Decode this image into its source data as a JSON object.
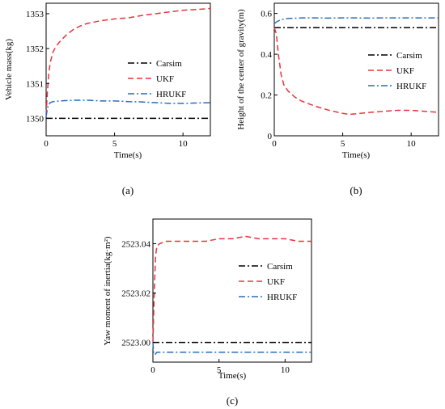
{
  "chart_data": [
    {
      "type": "line",
      "panel_label": "(a)",
      "xlabel": "Time(s)",
      "ylabel": "Vehicle mass(kg)",
      "xlim": [
        0,
        12
      ],
      "ylim": [
        1349.5,
        1353.3
      ],
      "xticks": [
        0,
        5,
        10
      ],
      "yticks": [
        1350,
        1351,
        1352,
        1353
      ],
      "ytick_labels": [
        "1350",
        "1351",
        "1352",
        "1353"
      ],
      "legend_position": "center-right",
      "series": [
        {
          "name": "Carsim",
          "color": "#000000",
          "dash": "dashdot",
          "x": [
            0,
            1,
            2,
            3,
            4,
            5,
            6,
            7,
            8,
            9,
            10,
            11,
            12
          ],
          "y": [
            1350,
            1350,
            1350,
            1350,
            1350,
            1350,
            1350,
            1350,
            1350,
            1350,
            1350,
            1350,
            1350
          ]
        },
        {
          "name": "UKF",
          "color": "#e8323c",
          "dash": "dashed",
          "x": [
            0,
            0.1,
            0.2,
            0.3,
            0.5,
            0.7,
            1,
            1.5,
            2,
            2.5,
            3,
            4,
            5,
            6,
            7,
            8,
            9,
            10,
            11,
            12
          ],
          "y": [
            1350.1,
            1350.8,
            1351.3,
            1351.6,
            1351.9,
            1352.05,
            1352.2,
            1352.4,
            1352.55,
            1352.65,
            1352.72,
            1352.8,
            1352.85,
            1352.88,
            1352.95,
            1353.0,
            1353.05,
            1353.1,
            1353.12,
            1353.15
          ]
        },
        {
          "name": "HRUKF",
          "color": "#2a6ebb",
          "dash": "dashdot",
          "x": [
            0,
            0.1,
            0.2,
            0.3,
            0.5,
            1,
            2,
            3,
            4,
            5,
            6,
            7,
            8,
            9,
            10,
            11,
            12
          ],
          "y": [
            1350.05,
            1350.3,
            1350.4,
            1350.45,
            1350.48,
            1350.5,
            1350.52,
            1350.52,
            1350.5,
            1350.5,
            1350.48,
            1350.47,
            1350.45,
            1350.43,
            1350.43,
            1350.44,
            1350.45
          ]
        }
      ]
    },
    {
      "type": "line",
      "panel_label": "(b)",
      "xlabel": "Time(s)",
      "ylabel": "Height of the center of gravity(m)",
      "xlim": [
        0,
        12
      ],
      "ylim": [
        0,
        0.65
      ],
      "xticks": [
        0,
        5,
        10
      ],
      "yticks": [
        0,
        0.2,
        0.4,
        0.6
      ],
      "ytick_labels": [
        "0",
        "0.2",
        "0.4",
        "0.6"
      ],
      "legend_position": "center-right",
      "series": [
        {
          "name": "Carsim",
          "color": "#000000",
          "dash": "dashdot",
          "x": [
            0,
            1,
            2,
            3,
            4,
            5,
            6,
            7,
            8,
            9,
            10,
            11,
            12
          ],
          "y": [
            0.53,
            0.53,
            0.53,
            0.53,
            0.53,
            0.53,
            0.53,
            0.53,
            0.53,
            0.53,
            0.53,
            0.53,
            0.53
          ]
        },
        {
          "name": "UKF",
          "color": "#e8323c",
          "dash": "dashed",
          "x": [
            0,
            0.15,
            0.3,
            0.5,
            0.7,
            1,
            1.5,
            2,
            3,
            4,
            5,
            5.5,
            6,
            7,
            8,
            9,
            10,
            11,
            12
          ],
          "y": [
            0.53,
            0.5,
            0.4,
            0.3,
            0.25,
            0.22,
            0.19,
            0.17,
            0.145,
            0.125,
            0.11,
            0.105,
            0.108,
            0.115,
            0.12,
            0.125,
            0.125,
            0.12,
            0.115
          ]
        },
        {
          "name": "HRUKF",
          "color": "#2a6ebb",
          "dash": "dashdot",
          "x": [
            0,
            0.2,
            0.5,
            1,
            2,
            3,
            4,
            5,
            6,
            7,
            8,
            9,
            10,
            11,
            12
          ],
          "y": [
            0.55,
            0.56,
            0.57,
            0.575,
            0.578,
            0.578,
            0.577,
            0.578,
            0.578,
            0.577,
            0.578,
            0.578,
            0.578,
            0.578,
            0.578
          ]
        }
      ]
    },
    {
      "type": "line",
      "panel_label": "(c)",
      "xlabel": "Time(s)",
      "ylabel": "Yaw moment of inertia(kg·m²)",
      "xlim": [
        0,
        12
      ],
      "ylim": [
        2522.992,
        2523.05
      ],
      "xticks": [
        0,
        5,
        10
      ],
      "yticks": [
        2523.0,
        2523.02,
        2523.04
      ],
      "ytick_labels": [
        "2523.00",
        "2523.02",
        "2523.04"
      ],
      "legend_position": "center-right",
      "series": [
        {
          "name": "Carsim",
          "color": "#000000",
          "dash": "dashdot",
          "x": [
            0,
            1,
            2,
            3,
            4,
            5,
            6,
            7,
            8,
            9,
            10,
            11,
            12
          ],
          "y": [
            2523.0,
            2523.0,
            2523.0,
            2523.0,
            2523.0,
            2523.0,
            2523.0,
            2523.0,
            2523.0,
            2523.0,
            2523.0,
            2523.0,
            2523.0
          ]
        },
        {
          "name": "UKF",
          "color": "#e8323c",
          "dash": "dashed",
          "x": [
            0,
            0.1,
            0.2,
            0.3,
            0.5,
            1,
            2,
            3,
            4,
            5,
            6,
            7,
            8,
            9,
            10,
            11,
            12
          ],
          "y": [
            2523.0,
            2523.02,
            2523.035,
            2523.039,
            2523.04,
            2523.041,
            2523.041,
            2523.041,
            2523.041,
            2523.042,
            2523.042,
            2523.043,
            2523.042,
            2523.042,
            2523.042,
            2523.041,
            2523.041
          ]
        },
        {
          "name": "HRUKF",
          "color": "#2a6ebb",
          "dash": "dashdot",
          "x": [
            0,
            0.05,
            0.15,
            0.3,
            0.6,
            1,
            2,
            3,
            4,
            5,
            6,
            7,
            8,
            9,
            10,
            11,
            12
          ],
          "y": [
            2523.0,
            2522.996,
            2522.995,
            2522.996,
            2522.996,
            2522.996,
            2522.996,
            2522.996,
            2522.996,
            2522.996,
            2522.996,
            2522.996,
            2522.996,
            2522.996,
            2522.996,
            2522.996,
            2522.996
          ]
        }
      ]
    }
  ]
}
